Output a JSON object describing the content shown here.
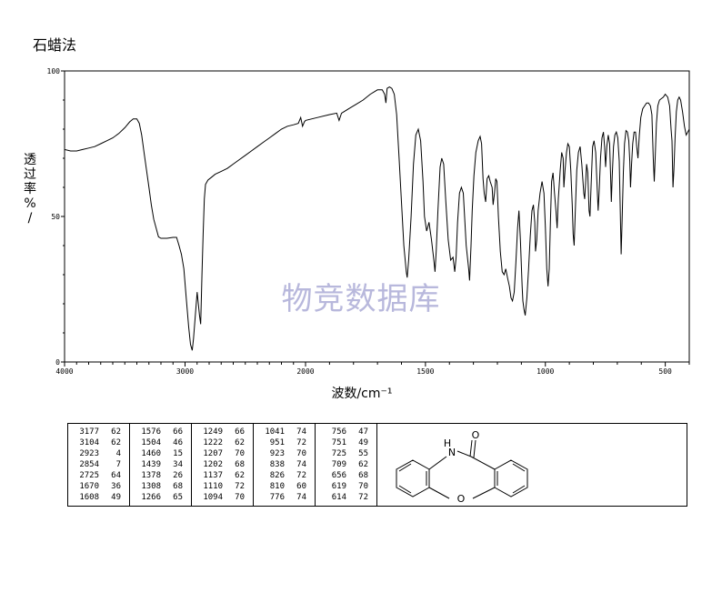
{
  "title": "石蜡法",
  "watermark": "物竞数据库",
  "chart_data": {
    "type": "line",
    "xlabel": "波数/cm⁻¹",
    "ylabel": "透过率%/",
    "xlim": [
      4000,
      400
    ],
    "ylim": [
      0,
      100
    ],
    "x_ticks": [
      "4000",
      "3000",
      "2000",
      "1500",
      "1000",
      "500"
    ],
    "y_ticks": [
      "100",
      "50",
      "0"
    ],
    "grid": false,
    "series": [
      {
        "points": [
          [
            4000,
            73
          ],
          [
            3950,
            72.5
          ],
          [
            3900,
            72.5
          ],
          [
            3850,
            73
          ],
          [
            3800,
            73.5
          ],
          [
            3750,
            74
          ],
          [
            3700,
            75
          ],
          [
            3650,
            76
          ],
          [
            3600,
            77
          ],
          [
            3550,
            78.5
          ],
          [
            3500,
            80.5
          ],
          [
            3460,
            82.5
          ],
          [
            3430,
            83.5
          ],
          [
            3400,
            83.5
          ],
          [
            3380,
            82
          ],
          [
            3360,
            78
          ],
          [
            3340,
            72
          ],
          [
            3320,
            66
          ],
          [
            3300,
            60
          ],
          [
            3280,
            54
          ],
          [
            3260,
            49
          ],
          [
            3240,
            46
          ],
          [
            3220,
            43
          ],
          [
            3200,
            42.5
          ],
          [
            3150,
            42.5
          ],
          [
            3100,
            42.8
          ],
          [
            3070,
            42.8
          ],
          [
            3050,
            40
          ],
          [
            3030,
            37
          ],
          [
            3010,
            32
          ],
          [
            2990,
            22
          ],
          [
            2970,
            12
          ],
          [
            2955,
            6
          ],
          [
            2940,
            4
          ],
          [
            2930,
            8
          ],
          [
            2915,
            16
          ],
          [
            2900,
            24
          ],
          [
            2890,
            20
          ],
          [
            2880,
            16
          ],
          [
            2870,
            13
          ],
          [
            2860,
            30
          ],
          [
            2850,
            44
          ],
          [
            2840,
            56
          ],
          [
            2830,
            61
          ],
          [
            2810,
            62.5
          ],
          [
            2780,
            63.5
          ],
          [
            2750,
            64.5
          ],
          [
            2700,
            65.5
          ],
          [
            2650,
            66.5
          ],
          [
            2600,
            68
          ],
          [
            2550,
            69.5
          ],
          [
            2500,
            71
          ],
          [
            2450,
            72.5
          ],
          [
            2400,
            74
          ],
          [
            2350,
            75.5
          ],
          [
            2300,
            77
          ],
          [
            2250,
            78.5
          ],
          [
            2200,
            80
          ],
          [
            2150,
            81
          ],
          [
            2100,
            81.5
          ],
          [
            2060,
            82
          ],
          [
            2040,
            84
          ],
          [
            2025,
            81
          ],
          [
            2010,
            82.5
          ],
          [
            2000,
            83
          ],
          [
            1950,
            84
          ],
          [
            1900,
            85
          ],
          [
            1870,
            85.5
          ],
          [
            1860,
            83
          ],
          [
            1850,
            85.5
          ],
          [
            1820,
            87
          ],
          [
            1790,
            88.5
          ],
          [
            1760,
            90
          ],
          [
            1730,
            92
          ],
          [
            1700,
            93.5
          ],
          [
            1680,
            93.5
          ],
          [
            1670,
            92
          ],
          [
            1665,
            89
          ],
          [
            1660,
            94
          ],
          [
            1650,
            94.5
          ],
          [
            1640,
            94
          ],
          [
            1630,
            92
          ],
          [
            1620,
            85
          ],
          [
            1610,
            70
          ],
          [
            1600,
            55
          ],
          [
            1590,
            40
          ],
          [
            1580,
            31
          ],
          [
            1576,
            29
          ],
          [
            1570,
            35
          ],
          [
            1560,
            50
          ],
          [
            1550,
            68
          ],
          [
            1540,
            78
          ],
          [
            1530,
            80
          ],
          [
            1520,
            76
          ],
          [
            1510,
            62
          ],
          [
            1504,
            50
          ],
          [
            1495,
            45
          ],
          [
            1485,
            48
          ],
          [
            1475,
            42
          ],
          [
            1465,
            35
          ],
          [
            1460,
            31
          ],
          [
            1455,
            38
          ],
          [
            1448,
            52
          ],
          [
            1439,
            67
          ],
          [
            1432,
            70
          ],
          [
            1424,
            68
          ],
          [
            1415,
            55
          ],
          [
            1405,
            42
          ],
          [
            1395,
            35
          ],
          [
            1385,
            36
          ],
          [
            1378,
            31
          ],
          [
            1372,
            36
          ],
          [
            1366,
            48
          ],
          [
            1358,
            58
          ],
          [
            1350,
            60
          ],
          [
            1342,
            58
          ],
          [
            1330,
            40
          ],
          [
            1320,
            32
          ],
          [
            1316,
            28
          ],
          [
            1310,
            40
          ],
          [
            1305,
            52
          ],
          [
            1298,
            64
          ],
          [
            1290,
            72
          ],
          [
            1280,
            76
          ],
          [
            1272,
            77.5
          ],
          [
            1266,
            75
          ],
          [
            1260,
            63
          ],
          [
            1255,
            58
          ],
          [
            1249,
            55
          ],
          [
            1243,
            63
          ],
          [
            1236,
            64
          ],
          [
            1230,
            62
          ],
          [
            1222,
            60
          ],
          [
            1218,
            54
          ],
          [
            1212,
            58
          ],
          [
            1207,
            63
          ],
          [
            1202,
            62
          ],
          [
            1196,
            50
          ],
          [
            1188,
            38
          ],
          [
            1180,
            31
          ],
          [
            1172,
            30
          ],
          [
            1165,
            32
          ],
          [
            1158,
            29
          ],
          [
            1150,
            26
          ],
          [
            1143,
            22
          ],
          [
            1137,
            21
          ],
          [
            1130,
            24
          ],
          [
            1123,
            34
          ],
          [
            1116,
            46
          ],
          [
            1110,
            52
          ],
          [
            1104,
            42
          ],
          [
            1097,
            26
          ],
          [
            1094,
            21
          ],
          [
            1089,
            18
          ],
          [
            1084,
            16
          ],
          [
            1077,
            22
          ],
          [
            1070,
            32
          ],
          [
            1063,
            43
          ],
          [
            1056,
            52
          ],
          [
            1050,
            54
          ],
          [
            1044,
            48
          ],
          [
            1041,
            38
          ],
          [
            1036,
            42
          ],
          [
            1030,
            52
          ],
          [
            1022,
            58
          ],
          [
            1014,
            62
          ],
          [
            1006,
            58
          ],
          [
            1000,
            46
          ],
          [
            994,
            32
          ],
          [
            989,
            26
          ],
          [
            984,
            32
          ],
          [
            979,
            48
          ],
          [
            974,
            62
          ],
          [
            968,
            65
          ],
          [
            962,
            58
          ],
          [
            956,
            52
          ],
          [
            951,
            46
          ],
          [
            946,
            56
          ],
          [
            938,
            66
          ],
          [
            932,
            72
          ],
          [
            926,
            70
          ],
          [
            923,
            60
          ],
          [
            918,
            66
          ],
          [
            912,
            72
          ],
          [
            906,
            75
          ],
          [
            900,
            74
          ],
          [
            894,
            66
          ],
          [
            888,
            54
          ],
          [
            884,
            44
          ],
          [
            880,
            40
          ],
          [
            875,
            52
          ],
          [
            869,
            66
          ],
          [
            862,
            72
          ],
          [
            855,
            74
          ],
          [
            848,
            68
          ],
          [
            840,
            58
          ],
          [
            836,
            56
          ],
          [
            832,
            62
          ],
          [
            828,
            68
          ],
          [
            823,
            65
          ],
          [
            818,
            52
          ],
          [
            814,
            50
          ],
          [
            809,
            61
          ],
          [
            803,
            74
          ],
          [
            797,
            76
          ],
          [
            790,
            72
          ],
          [
            784,
            60
          ],
          [
            780,
            52
          ],
          [
            776,
            58
          ],
          [
            770,
            70
          ],
          [
            764,
            77
          ],
          [
            758,
            79
          ],
          [
            753,
            74
          ],
          [
            749,
            67
          ],
          [
            744,
            74
          ],
          [
            738,
            78
          ],
          [
            732,
            75
          ],
          [
            728,
            64
          ],
          [
            725,
            55
          ],
          [
            721,
            64
          ],
          [
            716,
            74
          ],
          [
            710,
            78
          ],
          [
            704,
            79
          ],
          [
            698,
            77
          ],
          [
            692,
            69
          ],
          [
            688,
            54
          ],
          [
            684,
            37
          ],
          [
            680,
            48
          ],
          [
            675,
            65
          ],
          [
            670,
            75
          ],
          [
            664,
            79.5
          ],
          [
            658,
            79
          ],
          [
            652,
            76
          ],
          [
            648,
            69
          ],
          [
            645,
            60
          ],
          [
            641,
            67
          ],
          [
            636,
            75
          ],
          [
            630,
            79
          ],
          [
            624,
            79
          ],
          [
            619,
            74
          ],
          [
            614,
            70
          ],
          [
            608,
            78
          ],
          [
            602,
            84
          ],
          [
            594,
            87
          ],
          [
            586,
            88
          ],
          [
            578,
            89
          ],
          [
            570,
            89
          ],
          [
            562,
            88
          ],
          [
            556,
            85
          ],
          [
            550,
            70
          ],
          [
            546,
            62
          ],
          [
            542,
            70
          ],
          [
            537,
            82
          ],
          [
            531,
            88
          ],
          [
            524,
            90
          ],
          [
            516,
            90.5
          ],
          [
            508,
            91
          ],
          [
            500,
            92
          ],
          [
            490,
            91
          ],
          [
            482,
            88
          ],
          [
            476,
            80
          ],
          [
            472,
            76
          ],
          [
            468,
            60
          ],
          [
            464,
            66
          ],
          [
            459,
            77
          ],
          [
            454,
            86
          ],
          [
            448,
            90
          ],
          [
            442,
            91
          ],
          [
            436,
            90
          ],
          [
            428,
            86
          ],
          [
            420,
            81
          ],
          [
            413,
            78
          ],
          [
            406,
            79
          ],
          [
            400,
            80
          ]
        ]
      }
    ]
  },
  "peak_table": {
    "columns": [
      [
        [
          "3177",
          "62"
        ],
        [
          "3104",
          "62"
        ],
        [
          "2923",
          "4"
        ],
        [
          "2854",
          "7"
        ],
        [
          "2725",
          "64"
        ],
        [
          "1670",
          "36"
        ],
        [
          "1608",
          "49"
        ]
      ],
      [
        [
          "1576",
          "66"
        ],
        [
          "1504",
          "46"
        ],
        [
          "1460",
          "15"
        ],
        [
          "1439",
          "34"
        ],
        [
          "1378",
          "26"
        ],
        [
          "1308",
          "68"
        ],
        [
          "1266",
          "65"
        ]
      ],
      [
        [
          "1249",
          "66"
        ],
        [
          "1222",
          "62"
        ],
        [
          "1207",
          "70"
        ],
        [
          "1202",
          "68"
        ],
        [
          "1137",
          "62"
        ],
        [
          "1110",
          "72"
        ],
        [
          "1094",
          "70"
        ]
      ],
      [
        [
          "1041",
          "74"
        ],
        [
          "951",
          "72"
        ],
        [
          "923",
          "70"
        ],
        [
          "838",
          "74"
        ],
        [
          "826",
          "72"
        ],
        [
          "810",
          "60"
        ],
        [
          "776",
          "74"
        ]
      ],
      [
        [
          "756",
          "47"
        ],
        [
          "751",
          "49"
        ],
        [
          "725",
          "55"
        ],
        [
          "709",
          "62"
        ],
        [
          "656",
          "68"
        ],
        [
          "619",
          "70"
        ],
        [
          "614",
          "72"
        ]
      ]
    ]
  },
  "structure": {
    "atom_labels": [
      "O",
      "H",
      "N",
      "O"
    ]
  }
}
